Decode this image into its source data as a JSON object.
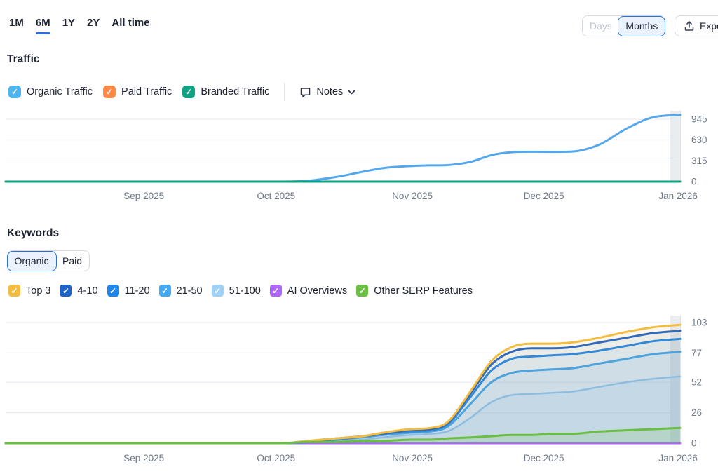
{
  "page": {
    "background": "#ffffff",
    "accent": "#2a6fdb"
  },
  "toolbar": {
    "time_ranges": [
      {
        "label": "1M",
        "selected": false
      },
      {
        "label": "6M",
        "selected": true
      },
      {
        "label": "1Y",
        "selected": false
      },
      {
        "label": "2Y",
        "selected": false
      },
      {
        "label": "All time",
        "selected": false
      }
    ],
    "granularity": [
      {
        "label": "Days",
        "selected": false,
        "disabled": true
      },
      {
        "label": "Months",
        "selected": true,
        "disabled": false
      }
    ],
    "export": {
      "label": "Export",
      "icon": "upload-icon"
    }
  },
  "traffic": {
    "heading": "Traffic",
    "legend": [
      {
        "label": "Organic Traffic",
        "color": "#4db5f0",
        "checked": true
      },
      {
        "label": "Paid Traffic",
        "color": "#ff8a48",
        "checked": true
      },
      {
        "label": "Branded Traffic",
        "color": "#0fa383",
        "checked": true
      }
    ],
    "notes": {
      "label": "Notes",
      "icon": "speech-bubble-icon"
    }
  },
  "keywords": {
    "heading": "Keywords",
    "type_toggle": [
      {
        "label": "Organic",
        "selected": true
      },
      {
        "label": "Paid",
        "selected": false
      }
    ],
    "legend": [
      {
        "label": "Top 3",
        "color": "#f3bd41",
        "checked": true
      },
      {
        "label": "4-10",
        "color": "#1d63c9",
        "checked": true
      },
      {
        "label": "11-20",
        "color": "#1e87ec",
        "checked": true
      },
      {
        "label": "21-50",
        "color": "#43a9f2",
        "checked": true
      },
      {
        "label": "51-100",
        "color": "#9fd0f6",
        "checked": true
      },
      {
        "label": "AI Overviews",
        "color": "#ad66f5",
        "checked": true
      },
      {
        "label": "Other SERP Features",
        "color": "#6abe41",
        "checked": true
      }
    ]
  },
  "chart_data": [
    {
      "id": "traffic",
      "type": "line",
      "title": "Traffic",
      "xlabel": "",
      "ylabel": "",
      "ylim": [
        0,
        945
      ],
      "grid": true,
      "current_period_highlight": true,
      "x_tick_labels": [
        "Sep 2025",
        "Oct 2025",
        "Nov 2025",
        "Dec 2025",
        "Jan 2026"
      ],
      "y_ticks": [
        {
          "value": 945,
          "label": "945"
        },
        {
          "value": 630,
          "label": "630"
        },
        {
          "value": 315,
          "label": "315"
        },
        {
          "value": 0,
          "label": "0"
        }
      ],
      "x": [
        0,
        0.41,
        0.45,
        0.49,
        0.53,
        0.56,
        0.6,
        0.63,
        0.655,
        0.69,
        0.72,
        0.75,
        0.78,
        0.81,
        0.84,
        0.88,
        0.92,
        0.96,
        1.0
      ],
      "series": [
        {
          "name": "Organic Traffic",
          "color": "#55a7ed",
          "values": [
            0,
            0,
            15,
            70,
            150,
            205,
            235,
            245,
            250,
            300,
            400,
            445,
            452,
            450,
            455,
            560,
            800,
            975,
            1010
          ]
        },
        {
          "name": "Paid Traffic",
          "color": "#ff8a48",
          "values": [
            0,
            0,
            0,
            0,
            0,
            0,
            0,
            0,
            0,
            0,
            0,
            0,
            0,
            0,
            0,
            0,
            0,
            0,
            0
          ]
        },
        {
          "name": "Branded Traffic",
          "color": "#09a17e",
          "values": [
            0,
            0,
            0,
            0,
            0,
            0,
            0,
            0,
            0,
            0,
            0,
            0,
            0,
            0,
            0,
            0,
            0,
            0,
            0
          ]
        }
      ]
    },
    {
      "id": "keywords",
      "type": "area",
      "title": "Keywords (Organic)",
      "xlabel": "",
      "ylabel": "",
      "ylim": [
        0,
        103
      ],
      "grid": true,
      "current_period_highlight": true,
      "x_tick_labels": [
        "Sep 2025",
        "Oct 2025",
        "Nov 2025",
        "Dec 2025",
        "Jan 2026"
      ],
      "y_ticks": [
        {
          "value": 103,
          "label": "103"
        },
        {
          "value": 77,
          "label": "77"
        },
        {
          "value": 52,
          "label": "52"
        },
        {
          "value": 26,
          "label": "26"
        },
        {
          "value": 0,
          "label": "0"
        }
      ],
      "x": [
        0,
        0.41,
        0.45,
        0.49,
        0.53,
        0.56,
        0.6,
        0.63,
        0.655,
        0.69,
        0.72,
        0.75,
        0.78,
        0.81,
        0.84,
        0.88,
        0.92,
        0.96,
        1.0
      ],
      "series": [
        {
          "name": "Top 3",
          "color": "#f3bd41",
          "values": [
            0,
            0,
            2,
            4,
            6,
            9,
            12,
            13,
            18,
            45,
            70,
            82,
            85,
            85,
            86,
            90,
            95,
            99,
            101
          ]
        },
        {
          "name": "4-10",
          "color": "#1d63c9",
          "values": [
            0,
            0,
            2,
            4,
            6,
            8,
            11,
            12,
            17,
            43,
            67,
            78,
            81,
            81,
            82,
            86,
            90,
            94,
            96
          ]
        },
        {
          "name": "11-20",
          "color": "#1e87ec",
          "values": [
            0,
            0,
            1,
            3,
            6,
            8,
            10,
            11,
            16,
            40,
            62,
            72,
            74,
            75,
            76,
            79,
            83,
            87,
            89
          ]
        },
        {
          "name": "21-50",
          "color": "#43a9f2",
          "values": [
            0,
            0,
            1,
            3,
            5,
            7,
            9,
            10,
            14,
            34,
            52,
            60,
            62,
            63,
            64,
            68,
            72,
            76,
            78
          ]
        },
        {
          "name": "51-100",
          "color": "#9fd0f6",
          "values": [
            0,
            0,
            1,
            2,
            3,
            5,
            7,
            8,
            10,
            22,
            35,
            41,
            42,
            43,
            44,
            48,
            52,
            55,
            57
          ]
        },
        {
          "name": "AI Overviews",
          "color": "#ad66f5",
          "values": [
            0,
            0,
            0,
            0,
            0,
            0,
            0,
            0,
            0,
            0,
            0,
            0,
            0,
            0,
            0,
            0,
            0,
            0,
            0
          ]
        },
        {
          "name": "Other SERP Features",
          "color": "#6abe41",
          "values": [
            0,
            0,
            1,
            1,
            2,
            2,
            3,
            3,
            4,
            5,
            6,
            7,
            7,
            8,
            8,
            10,
            11,
            12,
            13
          ]
        }
      ]
    }
  ]
}
